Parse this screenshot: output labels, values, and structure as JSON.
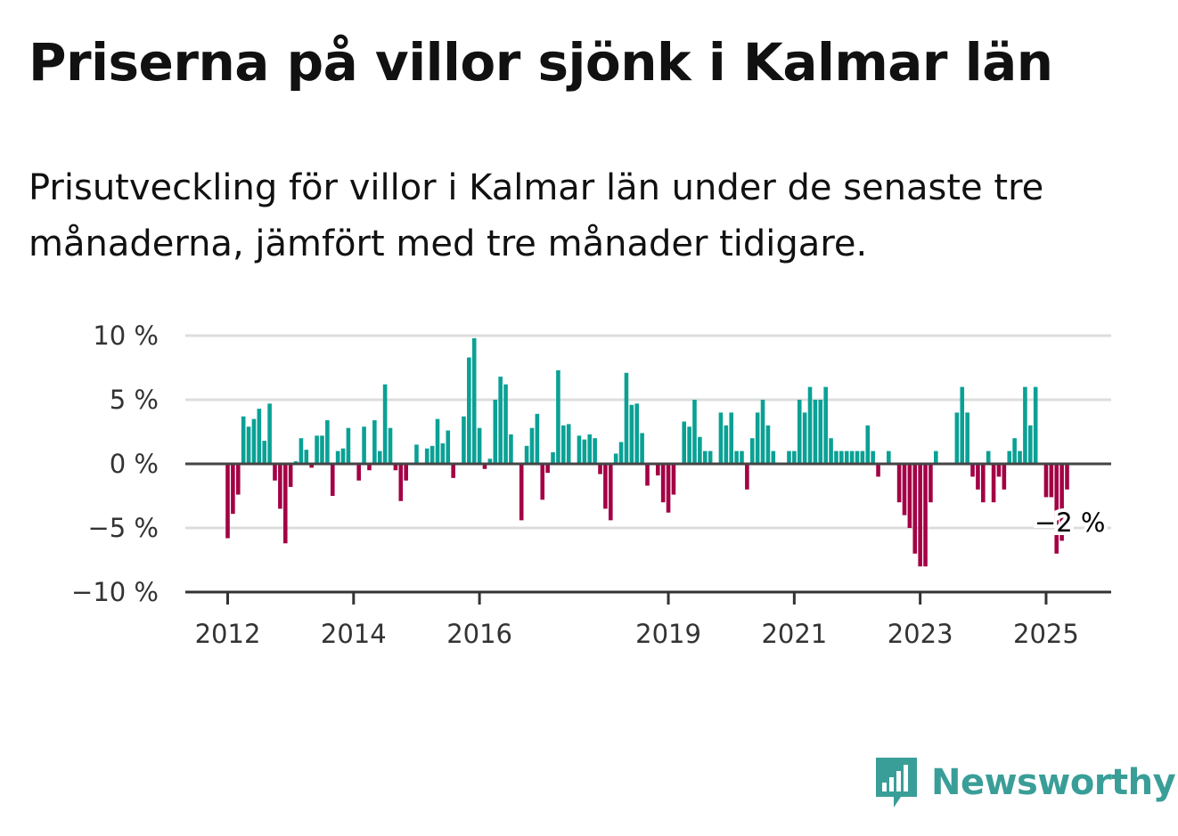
{
  "title": "Priserna på villor sjönk i Kalmar län",
  "subtitle": "Prisutveckling för villor i Kalmar län under de senaste tre månaderna, jämfört med tre månader tidigare.",
  "brand": "Newsworthy",
  "colors": {
    "positive": "#0aa195",
    "negative": "#a40045",
    "brand": "#3a9e98"
  },
  "chart_data": {
    "type": "bar",
    "title": "Priserna på villor sjönk i Kalmar län",
    "subtitle": "Prisutveckling för villor i Kalmar län under de senaste tre månaderna, jämfört med tre månader tidigare.",
    "ylim": [
      -10,
      10
    ],
    "yticks": [
      {
        "value": 10,
        "label": "10 %"
      },
      {
        "value": 5,
        "label": "5 %"
      },
      {
        "value": 0,
        "label": "0 %"
      },
      {
        "value": -5,
        "label": "−5 %"
      },
      {
        "value": -10,
        "label": "−10 %"
      }
    ],
    "xticks": [
      "2012",
      "2014",
      "2016",
      "2019",
      "2021",
      "2023",
      "2025"
    ],
    "grid": true,
    "annotation": {
      "label": "−2 %",
      "value": -2
    },
    "values": [
      -5.8,
      -3.9,
      -2.4,
      3.7,
      2.9,
      3.5,
      4.3,
      1.8,
      4.7,
      -1.3,
      -3.5,
      -6.2,
      -1.8,
      0.2,
      2.0,
      1.1,
      -0.3,
      2.2,
      2.2,
      3.4,
      -2.5,
      1.0,
      1.2,
      2.8,
      0.0,
      -1.3,
      2.9,
      -0.5,
      3.4,
      1.0,
      6.2,
      2.8,
      -0.5,
      -2.9,
      -1.3,
      0.0,
      1.5,
      0.0,
      1.2,
      1.4,
      3.5,
      1.6,
      2.6,
      -1.1,
      0.0,
      3.7,
      8.3,
      9.8,
      2.8,
      -0.4,
      0.4,
      5.0,
      6.8,
      6.2,
      2.3,
      0.0,
      -4.4,
      1.4,
      2.8,
      3.9,
      -2.8,
      -0.7,
      0.9,
      7.3,
      3.0,
      3.1,
      0.0,
      2.2,
      1.9,
      2.3,
      2.0,
      -0.8,
      -3.5,
      -4.4,
      0.8,
      1.7,
      7.1,
      4.6,
      4.7,
      2.4,
      -1.7,
      0.0,
      -0.9,
      -3.0,
      -3.8,
      -2.4,
      0.0,
      3.3,
      2.9,
      5.0,
      2.1,
      1.0,
      1.0,
      0.0,
      4.0,
      3.0,
      4.0,
      1.0,
      1.0,
      -2.0,
      2.0,
      4.0,
      5.0,
      3.0,
      1.0,
      0.0,
      0.0,
      1.0,
      1.0,
      5.0,
      4.0,
      6.0,
      5.0,
      5.0,
      6.0,
      2.0,
      1.0,
      1.0,
      1.0,
      1.0,
      1.0,
      1.0,
      3.0,
      1.0,
      -1.0,
      0.0,
      1.0,
      0.0,
      -3.0,
      -4.0,
      -5.0,
      -7.0,
      -8.0,
      -8.0,
      -3.0,
      1.0,
      0.0,
      0.0,
      0.0,
      4.0,
      6.0,
      4.0,
      -1.0,
      -2.0,
      -3.0,
      1.0,
      -3.0,
      -1.0,
      -2.0,
      1.0,
      2.0,
      1.0,
      6.0,
      3.0,
      6.0,
      0.0,
      -2.6,
      -2.6,
      -7.0,
      -6.0,
      -2.0
    ]
  }
}
